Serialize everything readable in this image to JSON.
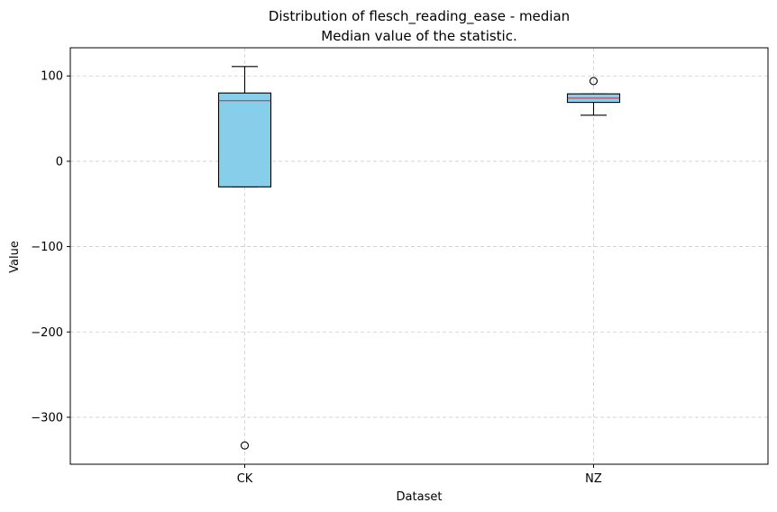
{
  "chart_data": {
    "type": "box",
    "title": "Distribution of flesch_reading_ease - median",
    "subtitle": "Median value of the statistic.",
    "xlabel": "Dataset",
    "ylabel": "Value",
    "categories": [
      "CK",
      "NZ"
    ],
    "boxes": [
      {
        "category": "CK",
        "whisker_low": -30,
        "q1": -30,
        "median": 71,
        "q3": 80,
        "whisker_high": 111,
        "outliers": [
          -333
        ]
      },
      {
        "category": "NZ",
        "whisker_low": 54,
        "q1": 69,
        "median": 74,
        "q3": 79,
        "whisker_high": 79,
        "outliers": [
          94
        ]
      }
    ],
    "ylim": [
      -355,
      133
    ],
    "yticks": [
      100,
      0,
      -100,
      -200,
      -300
    ],
    "ytick_labels": [
      "100",
      "0",
      "−100",
      "−200",
      "−300"
    ],
    "grid": true,
    "colors": {
      "box_fill": "#87ceeb",
      "median_line": "#d62728",
      "grid": "#cccccc",
      "edge": "#000000"
    }
  }
}
